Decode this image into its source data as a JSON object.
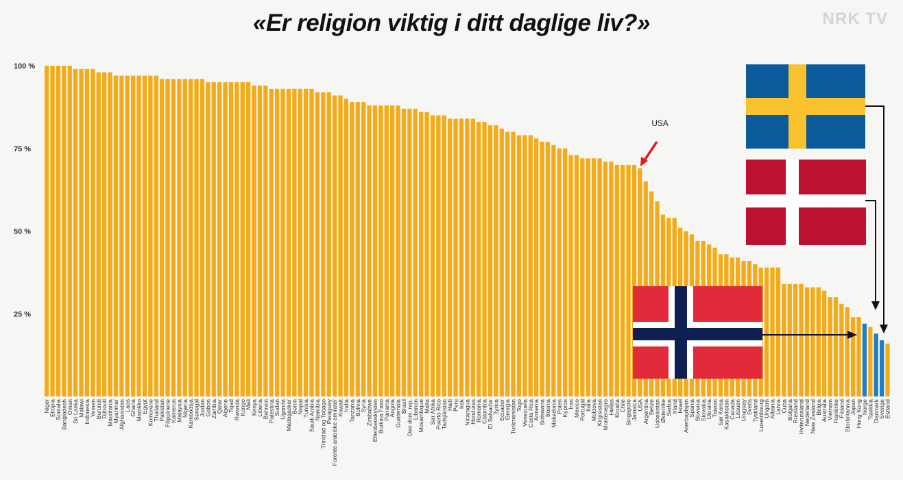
{
  "header": {
    "title": "«Er religion viktig i ditt daglige liv?»",
    "logo": "NRK TV"
  },
  "colors": {
    "bar": "#f4ab17",
    "highlight": "#1f7dc4",
    "arrow": "#e41b1b"
  },
  "chart_data": {
    "type": "bar",
    "title": "«Er religion viktig i ditt daglige liv?»",
    "xlabel": "",
    "ylabel": "",
    "ylim": [
      0,
      100
    ],
    "yticks": [
      {
        "value": 100,
        "label": "100 %"
      },
      {
        "value": 75,
        "label": "75 %"
      },
      {
        "value": 50,
        "label": "50 %"
      },
      {
        "value": 25,
        "label": "25 %"
      }
    ],
    "grid": false,
    "categories": [
      "Niger",
      "Etiopia",
      "Somalia",
      "Bangladesh",
      "Oman",
      "Sri Lanka",
      "Malawi",
      "Indonesia",
      "Yemen",
      "Burundi",
      "Djibouti",
      "Mauritania",
      "Myanmar",
      "Afghanistan",
      "Laos",
      "Ghana",
      "Marokko",
      "Egypt",
      "Komorene",
      "Thailand",
      "Pakistan",
      "Filippinene",
      "Kamerun",
      "Malaysia",
      "Nigeria",
      "Kambodsja",
      "Senegal",
      "Jordan",
      "Gabon",
      "Zambia",
      "Qatar",
      "Algerie",
      "Tsjad",
      "Rwanda",
      "Kongo",
      "Mali",
      "Kenya",
      "Liberia",
      "Bahrain",
      "Palestina",
      "Sudan",
      "Uganda",
      "Madagaskar",
      "Benin",
      "Nepal",
      "Tunisia",
      "Saudi Arabia",
      "Namibia",
      "Trinidad og Tobago",
      "Paraguay",
      "Forente arabiske emirater",
      "Kuwait",
      "India",
      "Tanzania",
      "Bolivia",
      "Syria",
      "Zimbabwe",
      "Elfenbenskysten",
      "Burkina Faso",
      "Panama",
      "Angola",
      "Guatemala",
      "Brasil",
      "Den dom. rep.",
      "Libanon",
      "Mosambique",
      "Malta",
      "Sør Afrika",
      "Puerto Rico",
      "Tadsjikistan",
      "Haiti",
      "Peru",
      "Irak",
      "Nicaragua",
      "Honduras",
      "Romania",
      "Colombia",
      "El Salvador",
      "Tyrkia",
      "Ecuador",
      "Georgia",
      "Turkmenistan",
      "Togo",
      "Venezuela",
      "Costa Rica",
      "Armenia",
      "Botswana",
      "Bosnia",
      "Makedonia",
      "Polen",
      "Kypros",
      "Iran",
      "Mexico",
      "Portugal",
      "Italia",
      "Moldova",
      "Kirgisistan",
      "Montenegro",
      "Hellas",
      "Kroatia",
      "Chile",
      "Singapore",
      "Jamaica",
      "USA",
      "Argentina",
      "Belize",
      "Usbekistan",
      "Østerrike",
      "Serbia",
      "Irland",
      "Israel",
      "Aserbajdsjan",
      "Spania",
      "Slovenia",
      "Slovakia",
      "Ukraina",
      "Taiwan",
      "Sør Korea",
      "Kasakhstan",
      "Canada",
      "Litauen",
      "Uruguay",
      "Sveits",
      "Tyskland",
      "Luxembourg",
      "Ungarn",
      "Albania",
      "Latvia",
      "Cuba",
      "Bulgaria",
      "Russland",
      "Hviterussland",
      "Nederland",
      "New Zealand",
      "Belgia",
      "Australia",
      "Vietnam",
      "Frankrike",
      "Finland",
      "Storbritannia",
      "Japan",
      "Hong Kong",
      "Norge",
      "Tsjekkia",
      "Danmark",
      "Sverige",
      "Estland"
    ],
    "values": [
      100,
      100,
      100,
      100,
      100,
      99,
      99,
      99,
      99,
      98,
      98,
      98,
      97,
      97,
      97,
      97,
      97,
      97,
      97,
      97,
      96,
      96,
      96,
      96,
      96,
      96,
      96,
      96,
      95,
      95,
      95,
      95,
      95,
      95,
      95,
      95,
      94,
      94,
      94,
      93,
      93,
      93,
      93,
      93,
      93,
      93,
      93,
      92,
      92,
      92,
      91,
      91,
      90,
      89,
      89,
      89,
      88,
      88,
      88,
      88,
      88,
      88,
      87,
      87,
      87,
      86,
      86,
      85,
      85,
      85,
      84,
      84,
      84,
      84,
      84,
      83,
      83,
      82,
      82,
      81,
      80,
      80,
      79,
      79,
      79,
      78,
      77,
      77,
      76,
      75,
      75,
      73,
      73,
      72,
      72,
      72,
      72,
      71,
      71,
      70,
      70,
      70,
      70,
      69,
      65,
      62,
      59,
      55,
      54,
      54,
      51,
      50,
      49,
      47,
      47,
      46,
      45,
      43,
      43,
      42,
      42,
      41,
      41,
      40,
      39,
      39,
      39,
      39,
      34,
      34,
      34,
      34,
      33,
      33,
      33,
      32,
      30,
      30,
      28,
      27,
      24,
      24,
      22,
      21,
      19,
      17,
      16
    ],
    "highlighted": [
      "Norge",
      "Danmark",
      "Sverige"
    ],
    "annotations": [
      {
        "label": "USA",
        "target": "USA"
      }
    ],
    "flags": [
      {
        "country": "Sverige"
      },
      {
        "country": "Danmark"
      },
      {
        "country": "Norge"
      }
    ]
  }
}
